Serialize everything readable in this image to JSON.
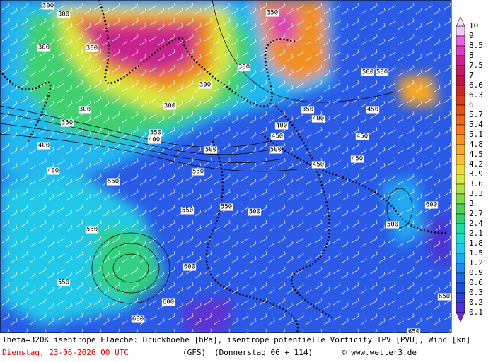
{
  "map": {
    "contour_labels": [
      "300",
      "300",
      "300",
      "300",
      "300",
      "300",
      "300",
      "300",
      "350",
      "350",
      "350",
      "350",
      "400",
      "400",
      "400",
      "400",
      "400",
      "450",
      "450",
      "450",
      "450",
      "450",
      "500",
      "500",
      "500",
      "500",
      "500",
      "500",
      "550",
      "550",
      "550",
      "550",
      "550",
      "550",
      "600",
      "600",
      "600",
      "600",
      "650",
      "650"
    ],
    "colorbar": {
      "levels": [
        10,
        9,
        8.5,
        8,
        7.5,
        7,
        6.6,
        6.3,
        6,
        5.7,
        5.4,
        5.1,
        4.8,
        4.5,
        4.2,
        3.9,
        3.6,
        3.3,
        3,
        2.7,
        2.4,
        2.1,
        1.8,
        1.5,
        1.2,
        0.9,
        0.6,
        0.3,
        0.2,
        0.1
      ],
      "colors": [
        "#f4c8f4",
        "#e860e0",
        "#d83cb8",
        "#c8248c",
        "#c01c64",
        "#b81840",
        "#c82828",
        "#d83c1c",
        "#e85018",
        "#f06418",
        "#f87818",
        "#f89020",
        "#f8a828",
        "#f8c030",
        "#f0d838",
        "#d8e840",
        "#b0e048",
        "#80d848",
        "#50d050",
        "#30d070",
        "#20d8a0",
        "#20d8d0",
        "#20c8f0",
        "#20a8f0",
        "#2088f0",
        "#2068e8",
        "#2050e0",
        "#3040d8",
        "#5030d0"
      ],
      "over_color": "#f8e0f8",
      "under_color": "#7828c8"
    },
    "footer": {
      "line1": "Theta=320K isentrope Flaeche: Druckhoehe [hPa], isentrope potentielle Vorticity IPV [PVU], Wind [kn]",
      "date": "Dienstag, 23-06-2026  00 UTC",
      "model": "(GFS)",
      "forecast": "(Donnerstag 06 + 114)",
      "copyright": "© www.wetter3.de"
    }
  }
}
